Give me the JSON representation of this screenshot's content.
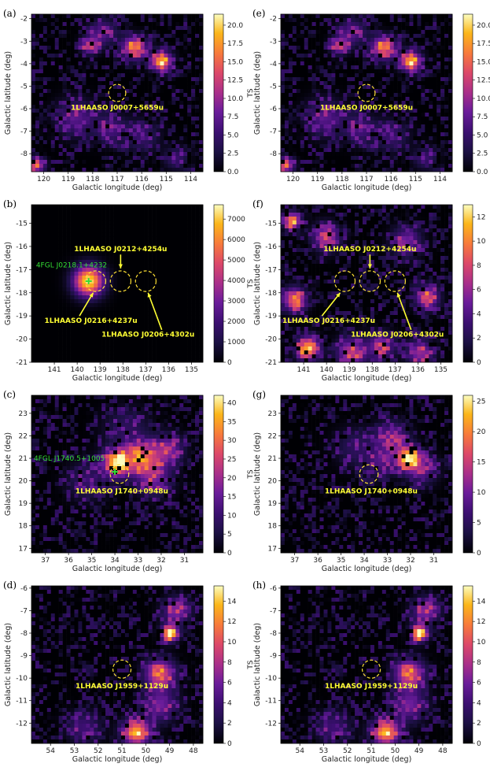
{
  "chart_data": [
    {
      "id": "panel-a",
      "panel_label": "(a)",
      "type": "heatmap",
      "xlabel": "Galactic longitude (deg)",
      "ylabel": "Galactic latitude (deg)",
      "xlim": [
        120.5,
        113.5
      ],
      "ylim": [
        -8.8,
        -1.8
      ],
      "xticks": [
        "120",
        "119",
        "118",
        "117",
        "116",
        "115",
        "114"
      ],
      "xtick_values": [
        120,
        119,
        118,
        117,
        116,
        115,
        114
      ],
      "yticks": [
        "-8",
        "-7",
        "-6",
        "-5",
        "-4",
        "-3",
        "-2"
      ],
      "ytick_values": [
        -8,
        -7,
        -6,
        -5,
        -4,
        -3,
        -2
      ],
      "colorbar": {
        "label": "TS",
        "min": 0,
        "max": 21.5,
        "ticks": [
          "0.0",
          "2.5",
          "5.0",
          "7.5",
          "10.0",
          "12.5",
          "15.0",
          "17.5",
          "20.0"
        ],
        "tick_values": [
          0,
          2.5,
          5,
          7.5,
          10,
          12.5,
          15,
          17.5,
          20
        ]
      },
      "circles": [
        {
          "l": 117.0,
          "b": -5.3,
          "r": 0.35
        }
      ],
      "sources": [
        {
          "text": "1LHAASO  J0007+5659u",
          "l": 117.0,
          "b": -6.05
        }
      ],
      "fermi": [],
      "arrows": [],
      "hotspots": [
        {
          "l": 116.3,
          "b": -3.3,
          "amp": 15,
          "s": 0.35
        },
        {
          "l": 115.2,
          "b": -3.9,
          "amp": 18,
          "s": 0.3
        },
        {
          "l": 118.1,
          "b": -3.2,
          "amp": 12,
          "s": 0.25
        },
        {
          "l": 117.6,
          "b": -2.6,
          "amp": 7,
          "s": 0.4
        },
        {
          "l": 118.7,
          "b": -6.4,
          "amp": 7,
          "s": 0.55
        },
        {
          "l": 117.3,
          "b": -6.9,
          "amp": 6,
          "s": 0.45
        },
        {
          "l": 116.0,
          "b": -7.2,
          "amp": 5,
          "s": 0.5
        },
        {
          "l": 120.3,
          "b": -8.5,
          "amp": 13,
          "s": 0.25
        },
        {
          "l": 114.6,
          "b": -8.2,
          "amp": 5,
          "s": 0.35
        }
      ],
      "seed": 11
    },
    {
      "id": "panel-b",
      "panel_label": "(b)",
      "type": "heatmap",
      "xlabel": "Galactic longitude (deg)",
      "ylabel": "Galactic latitude (deg)",
      "xlim": [
        142,
        134.5
      ],
      "ylim": [
        -21,
        -14.2
      ],
      "xticks": [
        "141",
        "140",
        "139",
        "138",
        "137",
        "136",
        "135"
      ],
      "xtick_values": [
        141,
        140,
        139,
        138,
        137,
        136,
        135
      ],
      "yticks": [
        "-21",
        "-20",
        "-19",
        "-18",
        "-17",
        "-16",
        "-15"
      ],
      "ytick_values": [
        -21,
        -20,
        -19,
        -18,
        -17,
        -16,
        -15
      ],
      "colorbar": {
        "label": "TS",
        "min": 0,
        "max": 7700,
        "ticks": [
          "0",
          "1000",
          "2000",
          "3000",
          "4000",
          "5000",
          "6000",
          "7000"
        ],
        "tick_values": [
          0,
          1000,
          2000,
          3000,
          4000,
          5000,
          6000,
          7000
        ]
      },
      "circles": [
        {
          "l": 139.2,
          "b": -17.5,
          "r": 0.45
        },
        {
          "l": 138.1,
          "b": -17.5,
          "r": 0.45
        },
        {
          "l": 137.0,
          "b": -17.5,
          "r": 0.45
        }
      ],
      "sources": [
        {
          "text": "1LHAASO  J0212+4254u",
          "l": 138.1,
          "b": -16.2
        },
        {
          "text": "1LHAASO  J0216+4237u",
          "l": 139.4,
          "b": -19.3
        },
        {
          "text": "1LHAASO  J0206+4302u",
          "l": 136.9,
          "b": -19.9
        }
      ],
      "fermi": [
        {
          "text": "4FGL J0218.1+4232",
          "l": 139.5,
          "b": -17.5,
          "label_l": 141.8,
          "label_b": -16.9
        }
      ],
      "arrows": [
        {
          "from": [
            138.1,
            -16.35
          ],
          "to": [
            138.1,
            -16.95
          ]
        },
        {
          "from": [
            139.9,
            -19.0
          ],
          "to": [
            139.3,
            -18.0
          ]
        },
        {
          "from": [
            136.3,
            -19.6
          ],
          "to": [
            136.9,
            -18.0
          ]
        }
      ],
      "hotspots": [
        {
          "l": 139.5,
          "b": -17.5,
          "amp": 7500,
          "s": 0.45
        }
      ],
      "seed": 22,
      "noise_scale": 0
    },
    {
      "id": "panel-c",
      "panel_label": "(c)",
      "type": "heatmap",
      "xlabel": "Galactic longitude (deg)",
      "ylabel": "Galactic latitude (deg)",
      "xlim": [
        37.6,
        30.2
      ],
      "ylim": [
        16.8,
        23.8
      ],
      "xticks": [
        "37",
        "36",
        "35",
        "34",
        "33",
        "32",
        "31"
      ],
      "xtick_values": [
        37,
        36,
        35,
        34,
        33,
        32,
        31
      ],
      "yticks": [
        "17",
        "18",
        "19",
        "20",
        "21",
        "22",
        "23"
      ],
      "ytick_values": [
        17,
        18,
        19,
        20,
        21,
        22,
        23
      ],
      "colorbar": {
        "label": "TS",
        "min": 0,
        "max": 42,
        "ticks": [
          "0",
          "5",
          "10",
          "15",
          "20",
          "25",
          "30",
          "35",
          "40"
        ],
        "tick_values": [
          0,
          5,
          10,
          15,
          20,
          25,
          30,
          35,
          40
        ]
      },
      "circles": [
        {
          "l": 33.8,
          "b": 20.3,
          "r": 0.4
        }
      ],
      "sources": [
        {
          "text": "1LHAASO  J1740+0948u",
          "l": 33.7,
          "b": 19.45
        }
      ],
      "fermi": [
        {
          "text": "4FGL J1740.5+1005",
          "l": 34.0,
          "b": 20.4,
          "label_l": 37.5,
          "label_b": 20.9
        }
      ],
      "arrows": [],
      "hotspots": [
        {
          "l": 33.9,
          "b": 20.8,
          "amp": 40,
          "s": 0.4
        },
        {
          "l": 32.8,
          "b": 21.0,
          "amp": 25,
          "s": 0.5
        },
        {
          "l": 31.7,
          "b": 21.4,
          "amp": 18,
          "s": 0.45
        },
        {
          "l": 32.3,
          "b": 20.1,
          "amp": 15,
          "s": 0.55
        },
        {
          "l": 33.5,
          "b": 22.3,
          "amp": 8,
          "s": 0.7
        },
        {
          "l": 35.2,
          "b": 20.0,
          "amp": 9,
          "s": 0.6
        }
      ],
      "seed": 33
    },
    {
      "id": "panel-d",
      "panel_label": "(d)",
      "type": "heatmap",
      "xlabel": "Galactic longitude (deg)",
      "ylabel": "Galactic latitude (deg)",
      "xlim": [
        54.8,
        47.6
      ],
      "ylim": [
        -12.9,
        -5.9
      ],
      "xticks": [
        "54",
        "53",
        "52",
        "51",
        "50",
        "49",
        "48"
      ],
      "xtick_values": [
        54,
        53,
        52,
        51,
        50,
        49,
        48
      ],
      "yticks": [
        "-12",
        "-11",
        "-10",
        "-9",
        "-8",
        "-7",
        "-6"
      ],
      "ytick_values": [
        -12,
        -11,
        -10,
        -9,
        -8,
        -7,
        -6
      ],
      "colorbar": {
        "label": "TS",
        "min": 0,
        "max": 15.5,
        "ticks": [
          "0",
          "2",
          "4",
          "6",
          "8",
          "10",
          "12",
          "14"
        ],
        "tick_values": [
          0,
          2,
          4,
          6,
          8,
          10,
          12,
          14
        ]
      },
      "circles": [
        {
          "l": 51.0,
          "b": -9.6,
          "r": 0.38
        }
      ],
      "sources": [
        {
          "text": "1LHAASO  J1959+1129u",
          "l": 51.0,
          "b": -10.45
        }
      ],
      "fermi": [],
      "arrows": [],
      "hotspots": [
        {
          "l": 49.0,
          "b": -8.0,
          "amp": 14,
          "s": 0.25
        },
        {
          "l": 49.4,
          "b": -9.8,
          "amp": 10,
          "s": 0.45
        },
        {
          "l": 48.7,
          "b": -7.0,
          "amp": 7,
          "s": 0.4
        },
        {
          "l": 50.4,
          "b": -12.4,
          "amp": 13,
          "s": 0.4
        },
        {
          "l": 49.4,
          "b": -11.2,
          "amp": 6,
          "s": 0.5
        },
        {
          "l": 52.6,
          "b": -12.2,
          "amp": 4,
          "s": 0.5
        }
      ],
      "seed": 44
    },
    {
      "id": "panel-e",
      "panel_label": "(e)",
      "type": "heatmap",
      "xlabel": "Galactic longitude (deg)",
      "ylabel": "Galactic latitude (deg)",
      "xlim": [
        120.5,
        113.5
      ],
      "ylim": [
        -8.8,
        -1.8
      ],
      "xticks": [
        "120",
        "119",
        "118",
        "117",
        "116",
        "115",
        "114"
      ],
      "xtick_values": [
        120,
        119,
        118,
        117,
        116,
        115,
        114
      ],
      "yticks": [
        "-8",
        "-7",
        "-6",
        "-5",
        "-4",
        "-3",
        "-2"
      ],
      "ytick_values": [
        -8,
        -7,
        -6,
        -5,
        -4,
        -3,
        -2
      ],
      "colorbar": {
        "label": "TS",
        "min": 0,
        "max": 21.5,
        "ticks": [
          "0.0",
          "2.5",
          "5.0",
          "7.5",
          "10.0",
          "12.5",
          "15.0",
          "17.5",
          "20.0"
        ],
        "tick_values": [
          0,
          2.5,
          5,
          7.5,
          10,
          12.5,
          15,
          17.5,
          20
        ]
      },
      "circles": [
        {
          "l": 117.0,
          "b": -5.3,
          "r": 0.35
        }
      ],
      "sources": [
        {
          "text": "1LHAASO  J0007+5659u",
          "l": 117.0,
          "b": -6.05
        }
      ],
      "fermi": [],
      "arrows": [],
      "hotspots": [
        {
          "l": 116.3,
          "b": -3.3,
          "amp": 15,
          "s": 0.35
        },
        {
          "l": 115.2,
          "b": -3.9,
          "amp": 18,
          "s": 0.3
        },
        {
          "l": 118.1,
          "b": -3.2,
          "amp": 12,
          "s": 0.25
        },
        {
          "l": 117.6,
          "b": -2.6,
          "amp": 7,
          "s": 0.4
        },
        {
          "l": 118.7,
          "b": -6.4,
          "amp": 7,
          "s": 0.55
        },
        {
          "l": 117.3,
          "b": -6.9,
          "amp": 6,
          "s": 0.45
        },
        {
          "l": 116.0,
          "b": -7.2,
          "amp": 5,
          "s": 0.5
        },
        {
          "l": 120.3,
          "b": -8.5,
          "amp": 13,
          "s": 0.25
        },
        {
          "l": 114.6,
          "b": -8.2,
          "amp": 5,
          "s": 0.35
        }
      ],
      "seed": 11
    },
    {
      "id": "panel-f",
      "panel_label": "(f)",
      "type": "heatmap",
      "xlabel": "Galactic longitude (deg)",
      "ylabel": "Galactic latitude (deg)",
      "xlim": [
        142,
        134.5
      ],
      "ylim": [
        -21,
        -14.2
      ],
      "xticks": [
        "141",
        "140",
        "139",
        "138",
        "137",
        "136",
        "135"
      ],
      "xtick_values": [
        141,
        140,
        139,
        138,
        137,
        136,
        135
      ],
      "yticks": [
        "-21",
        "-20",
        "-19",
        "-18",
        "-17",
        "-16",
        "-15"
      ],
      "ytick_values": [
        -21,
        -20,
        -19,
        -18,
        -17,
        -16,
        -15
      ],
      "colorbar": {
        "label": "TS",
        "min": 0,
        "max": 13,
        "ticks": [
          "0",
          "2",
          "4",
          "6",
          "8",
          "10",
          "12"
        ],
        "tick_values": [
          0,
          2,
          4,
          6,
          8,
          10,
          12
        ]
      },
      "circles": [
        {
          "l": 139.2,
          "b": -17.5,
          "r": 0.45
        },
        {
          "l": 138.1,
          "b": -17.5,
          "r": 0.45
        },
        {
          "l": 137.0,
          "b": -17.5,
          "r": 0.45
        }
      ],
      "sources": [
        {
          "text": "1LHAASO  J0212+4254u",
          "l": 138.1,
          "b": -16.2
        },
        {
          "text": "1LHAASO  J0216+4237u",
          "l": 139.9,
          "b": -19.3
        },
        {
          "text": "1LHAASO  J0206+4302u",
          "l": 136.9,
          "b": -19.9
        }
      ],
      "fermi": [],
      "arrows": [
        {
          "from": [
            138.1,
            -16.35
          ],
          "to": [
            138.1,
            -16.95
          ]
        },
        {
          "from": [
            140.2,
            -19.0
          ],
          "to": [
            139.4,
            -18.0
          ]
        },
        {
          "from": [
            136.3,
            -19.6
          ],
          "to": [
            136.9,
            -18.0
          ]
        }
      ],
      "hotspots": [
        {
          "l": 141.4,
          "b": -18.3,
          "amp": 9,
          "s": 0.35
        },
        {
          "l": 140.8,
          "b": -20.4,
          "amp": 11,
          "s": 0.35
        },
        {
          "l": 138.9,
          "b": -20.6,
          "amp": 7,
          "s": 0.45
        },
        {
          "l": 137.6,
          "b": -20.3,
          "amp": 6,
          "s": 0.4
        },
        {
          "l": 135.9,
          "b": -20.6,
          "amp": 6,
          "s": 0.4
        },
        {
          "l": 141.5,
          "b": -14.9,
          "amp": 10,
          "s": 0.25
        },
        {
          "l": 140.0,
          "b": -15.6,
          "amp": 7,
          "s": 0.4
        },
        {
          "l": 136.5,
          "b": -15.8,
          "amp": 5,
          "s": 0.45
        },
        {
          "l": 135.6,
          "b": -18.2,
          "amp": 8,
          "s": 0.35
        }
      ],
      "seed": 66
    },
    {
      "id": "panel-g",
      "panel_label": "(g)",
      "type": "heatmap",
      "xlabel": "Galactic longitude (deg)",
      "ylabel": "Galactic latitude (deg)",
      "xlim": [
        37.6,
        30.2
      ],
      "ylim": [
        16.8,
        23.8
      ],
      "xticks": [
        "37",
        "36",
        "35",
        "34",
        "33",
        "32",
        "31"
      ],
      "xtick_values": [
        37,
        36,
        35,
        34,
        33,
        32,
        31
      ],
      "yticks": [
        "17",
        "18",
        "19",
        "20",
        "21",
        "22",
        "23"
      ],
      "ytick_values": [
        17,
        18,
        19,
        20,
        21,
        22,
        23
      ],
      "colorbar": {
        "label": "TS",
        "min": 0,
        "max": 26,
        "ticks": [
          "0",
          "5",
          "10",
          "15",
          "20",
          "25"
        ],
        "tick_values": [
          0,
          5,
          10,
          15,
          20,
          25
        ]
      },
      "circles": [
        {
          "l": 33.8,
          "b": 20.3,
          "r": 0.4
        }
      ],
      "sources": [
        {
          "text": "1LHAASO  J1740+0948u",
          "l": 33.7,
          "b": 19.45
        }
      ],
      "fermi": [],
      "arrows": [],
      "hotspots": [
        {
          "l": 32.1,
          "b": 21.0,
          "amp": 24,
          "s": 0.35
        },
        {
          "l": 32.8,
          "b": 21.9,
          "amp": 10,
          "s": 0.5
        },
        {
          "l": 31.5,
          "b": 20.5,
          "amp": 9,
          "s": 0.45
        },
        {
          "l": 33.3,
          "b": 20.8,
          "amp": 7,
          "s": 0.45
        },
        {
          "l": 34.4,
          "b": 21.5,
          "amp": 5,
          "s": 0.6
        }
      ],
      "seed": 77
    },
    {
      "id": "panel-h",
      "panel_label": "(h)",
      "type": "heatmap",
      "xlabel": "Galactic longitude (deg)",
      "ylabel": "Galactic latitude (deg)",
      "xlim": [
        54.8,
        47.6
      ],
      "ylim": [
        -12.9,
        -5.9
      ],
      "xticks": [
        "54",
        "53",
        "52",
        "51",
        "50",
        "49",
        "48"
      ],
      "xtick_values": [
        54,
        53,
        52,
        51,
        50,
        49,
        48
      ],
      "yticks": [
        "-12",
        "-11",
        "-10",
        "-9",
        "-8",
        "-7",
        "-6"
      ],
      "ytick_values": [
        -12,
        -11,
        -10,
        -9,
        -8,
        -7,
        -6
      ],
      "colorbar": {
        "label": "TS",
        "min": 0,
        "max": 15.5,
        "ticks": [
          "0",
          "2",
          "4",
          "6",
          "8",
          "10",
          "12",
          "14"
        ],
        "tick_values": [
          0,
          2,
          4,
          6,
          8,
          10,
          12,
          14
        ]
      },
      "circles": [
        {
          "l": 51.0,
          "b": -9.6,
          "r": 0.38
        }
      ],
      "sources": [
        {
          "text": "1LHAASO  J1959+1129u",
          "l": 51.0,
          "b": -10.45
        }
      ],
      "fermi": [],
      "arrows": [],
      "hotspots": [
        {
          "l": 49.0,
          "b": -8.0,
          "amp": 14,
          "s": 0.25
        },
        {
          "l": 49.4,
          "b": -9.8,
          "amp": 10,
          "s": 0.45
        },
        {
          "l": 48.7,
          "b": -7.0,
          "amp": 7,
          "s": 0.4
        },
        {
          "l": 50.4,
          "b": -12.4,
          "amp": 13,
          "s": 0.4
        },
        {
          "l": 49.4,
          "b": -11.2,
          "amp": 6,
          "s": 0.5
        },
        {
          "l": 52.6,
          "b": -12.2,
          "amp": 4,
          "s": 0.5
        }
      ],
      "seed": 44
    }
  ],
  "colors": {
    "circle": "#ffe135",
    "source_label": "#ffff33",
    "fermi_label": "#33dd33",
    "arrow": "#ffff33"
  }
}
